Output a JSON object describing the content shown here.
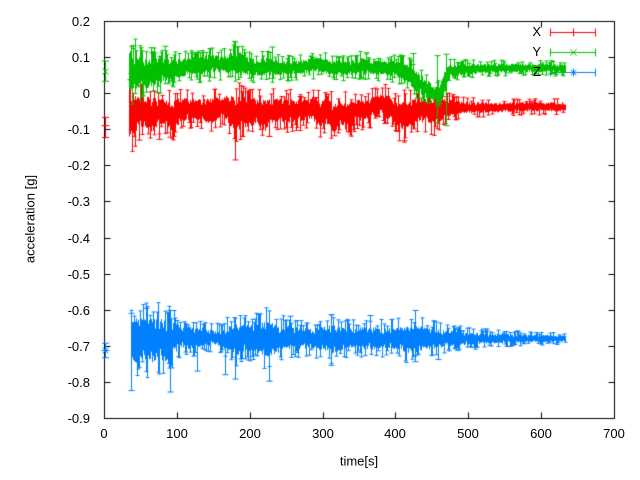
{
  "chart_data": {
    "type": "line",
    "style": "errorbars",
    "title": "",
    "xlabel": "time[s]",
    "ylabel": "acceleration [g]",
    "xlim": [
      0,
      700
    ],
    "ylim": [
      -0.9,
      0.2
    ],
    "xticks": [
      "0",
      "100",
      "200",
      "300",
      "400",
      "500",
      "600",
      "700"
    ],
    "yticks": [
      "0.2",
      "0.1",
      "0",
      "-0.1",
      "-0.2",
      "-0.3",
      "-0.4",
      "-0.5",
      "-0.6",
      "-0.7",
      "-0.8",
      "-0.9"
    ],
    "grid": false,
    "background_color": "#ffffff",
    "border_color": "#000000",
    "legend": {
      "position": "top-right"
    },
    "series": [
      {
        "name": "X",
        "color": "#ff0000",
        "marker": "plus",
        "initial_point": {
          "t": 2,
          "value": -0.09,
          "err_low": -0.123,
          "err_high": -0.067
        },
        "band": {
          "t_start": 34,
          "t_end": 633,
          "profile": [
            [
              34,
              -0.06,
              0.07
            ],
            [
              45,
              -0.055,
              0.05
            ],
            [
              55,
              -0.05,
              0.04
            ],
            [
              65,
              -0.06,
              0.05
            ],
            [
              78,
              -0.05,
              0.038
            ],
            [
              92,
              -0.062,
              0.045
            ],
            [
              108,
              -0.046,
              0.032
            ],
            [
              128,
              -0.045,
              0.03
            ],
            [
              148,
              -0.05,
              0.035
            ],
            [
              163,
              -0.036,
              0.03
            ],
            [
              178,
              -0.058,
              0.05
            ],
            [
              192,
              -0.055,
              0.045
            ],
            [
              208,
              -0.05,
              0.035
            ],
            [
              222,
              -0.063,
              0.045
            ],
            [
              238,
              -0.046,
              0.032
            ],
            [
              255,
              -0.05,
              0.035
            ],
            [
              272,
              -0.048,
              0.03
            ],
            [
              285,
              -0.04,
              0.03
            ],
            [
              295,
              -0.062,
              0.04
            ],
            [
              305,
              -0.048,
              0.035
            ],
            [
              315,
              -0.072,
              0.042
            ],
            [
              324,
              -0.05,
              0.035
            ],
            [
              332,
              -0.068,
              0.04
            ],
            [
              345,
              -0.05,
              0.032
            ],
            [
              362,
              -0.048,
              0.03
            ],
            [
              375,
              -0.03,
              0.028
            ],
            [
              388,
              -0.036,
              0.035
            ],
            [
              398,
              -0.05,
              0.032
            ],
            [
              408,
              -0.068,
              0.045
            ],
            [
              418,
              -0.058,
              0.04
            ],
            [
              428,
              -0.05,
              0.036
            ],
            [
              442,
              -0.046,
              0.035
            ],
            [
              456,
              -0.05,
              0.04
            ],
            [
              468,
              -0.044,
              0.028
            ],
            [
              480,
              -0.04,
              0.02
            ],
            [
              500,
              -0.04,
              0.016
            ],
            [
              540,
              -0.039,
              0.014
            ],
            [
              590,
              -0.038,
              0.013
            ],
            [
              633,
              -0.038,
              0.013
            ]
          ]
        },
        "outlier_bars": [
          {
            "t": 48,
            "low": -0.13
          },
          {
            "t": 75,
            "low": -0.128
          },
          {
            "t": 90,
            "low": -0.122
          },
          {
            "t": 180,
            "low": -0.185
          },
          {
            "t": 226,
            "low": -0.12
          },
          {
            "t": 316,
            "low": -0.118
          },
          {
            "t": 412,
            "low": -0.132
          }
        ]
      },
      {
        "name": "Y",
        "color": "#00c000",
        "marker": "cross",
        "initial_point": {
          "t": 2,
          "value": 0.06,
          "err_low": 0.033,
          "err_high": 0.089
        },
        "band": {
          "t_start": 34,
          "t_end": 633,
          "profile": [
            [
              34,
              0.065,
              0.06
            ],
            [
              44,
              0.058,
              0.05
            ],
            [
              58,
              0.055,
              0.042
            ],
            [
              72,
              0.06,
              0.036
            ],
            [
              88,
              0.065,
              0.03
            ],
            [
              104,
              0.07,
              0.026
            ],
            [
              120,
              0.075,
              0.025
            ],
            [
              134,
              0.078,
              0.028
            ],
            [
              150,
              0.082,
              0.026
            ],
            [
              164,
              0.078,
              0.026
            ],
            [
              176,
              0.088,
              0.032
            ],
            [
              186,
              0.082,
              0.034
            ],
            [
              196,
              0.075,
              0.026
            ],
            [
              210,
              0.07,
              0.023
            ],
            [
              224,
              0.075,
              0.026
            ],
            [
              240,
              0.07,
              0.021
            ],
            [
              258,
              0.07,
              0.02
            ],
            [
              276,
              0.074,
              0.02
            ],
            [
              296,
              0.078,
              0.021
            ],
            [
              316,
              0.07,
              0.02
            ],
            [
              336,
              0.07,
              0.02
            ],
            [
              352,
              0.074,
              0.024
            ],
            [
              368,
              0.07,
              0.02
            ],
            [
              384,
              0.07,
              0.02
            ],
            [
              400,
              0.068,
              0.022
            ],
            [
              413,
              0.058,
              0.026
            ],
            [
              428,
              0.032,
              0.03
            ],
            [
              442,
              0.012,
              0.028
            ],
            [
              453,
              -0.004,
              0.02
            ],
            [
              461,
              0.0,
              0.024
            ],
            [
              467,
              0.028,
              0.034
            ],
            [
              474,
              0.062,
              0.02
            ],
            [
              490,
              0.065,
              0.016
            ],
            [
              520,
              0.068,
              0.013
            ],
            [
              560,
              0.07,
              0.012
            ],
            [
              600,
              0.07,
              0.012
            ],
            [
              633,
              0.068,
              0.012
            ]
          ]
        },
        "outlier_bars": [
          {
            "t": 40,
            "high": 0.132
          },
          {
            "t": 64,
            "high": 0.126
          },
          {
            "t": 84,
            "high": 0.13
          },
          {
            "t": 180,
            "high": 0.142
          },
          {
            "t": 230,
            "high": 0.128
          },
          {
            "t": 359,
            "high": 0.112
          },
          {
            "t": 424,
            "high": 0.11
          },
          {
            "t": 457,
            "high": 0.104,
            "low": -0.083
          },
          {
            "t": 469,
            "high": 0.108,
            "low": -0.09
          }
        ]
      },
      {
        "name": "Z",
        "color": "#0080ff",
        "marker": "star",
        "initial_point": {
          "t": 2,
          "value": -0.713,
          "err_low": -0.733,
          "err_high": -0.693
        },
        "band": {
          "t_start": 36,
          "t_end": 633,
          "profile": [
            [
              36,
              -0.69,
              0.055
            ],
            [
              44,
              -0.685,
              0.062
            ],
            [
              54,
              -0.68,
              0.056
            ],
            [
              64,
              -0.686,
              0.062
            ],
            [
              74,
              -0.68,
              0.056
            ],
            [
              84,
              -0.686,
              0.06
            ],
            [
              94,
              -0.68,
              0.046
            ],
            [
              104,
              -0.676,
              0.036
            ],
            [
              118,
              -0.678,
              0.03
            ],
            [
              132,
              -0.676,
              0.028
            ],
            [
              146,
              -0.676,
              0.023
            ],
            [
              158,
              -0.678,
              0.022
            ],
            [
              170,
              -0.68,
              0.034
            ],
            [
              180,
              -0.685,
              0.046
            ],
            [
              190,
              -0.68,
              0.04
            ],
            [
              202,
              -0.678,
              0.035
            ],
            [
              214,
              -0.68,
              0.044
            ],
            [
              226,
              -0.682,
              0.05
            ],
            [
              238,
              -0.68,
              0.04
            ],
            [
              252,
              -0.678,
              0.034
            ],
            [
              266,
              -0.68,
              0.03
            ],
            [
              282,
              -0.678,
              0.028
            ],
            [
              300,
              -0.68,
              0.034
            ],
            [
              314,
              -0.682,
              0.04
            ],
            [
              330,
              -0.68,
              0.03
            ],
            [
              346,
              -0.678,
              0.028
            ],
            [
              362,
              -0.68,
              0.034
            ],
            [
              378,
              -0.68,
              0.03
            ],
            [
              392,
              -0.678,
              0.028
            ],
            [
              406,
              -0.68,
              0.034
            ],
            [
              420,
              -0.682,
              0.04
            ],
            [
              436,
              -0.68,
              0.034
            ],
            [
              452,
              -0.68,
              0.028
            ],
            [
              468,
              -0.68,
              0.024
            ],
            [
              484,
              -0.68,
              0.021
            ],
            [
              504,
              -0.68,
              0.017
            ],
            [
              532,
              -0.68,
              0.014
            ],
            [
              564,
              -0.68,
              0.012
            ],
            [
              600,
              -0.68,
              0.01
            ],
            [
              633,
              -0.68,
              0.009
            ]
          ]
        },
        "outlier_bars": [
          {
            "t": 37,
            "low": -0.824,
            "high": -0.61
          },
          {
            "t": 57,
            "high": -0.596
          },
          {
            "t": 90,
            "low": -0.828,
            "high": -0.602
          },
          {
            "t": 128,
            "low": -0.77
          },
          {
            "t": 166,
            "low": -0.78
          },
          {
            "t": 180,
            "low": -0.792
          },
          {
            "t": 227,
            "low": -0.798
          },
          {
            "t": 255,
            "high": -0.618
          },
          {
            "t": 312,
            "low": -0.754,
            "high": -0.614
          },
          {
            "t": 365,
            "high": -0.616
          },
          {
            "t": 427,
            "low": -0.744,
            "high": -0.602
          },
          {
            "t": 458,
            "low": -0.738
          }
        ]
      }
    ]
  }
}
